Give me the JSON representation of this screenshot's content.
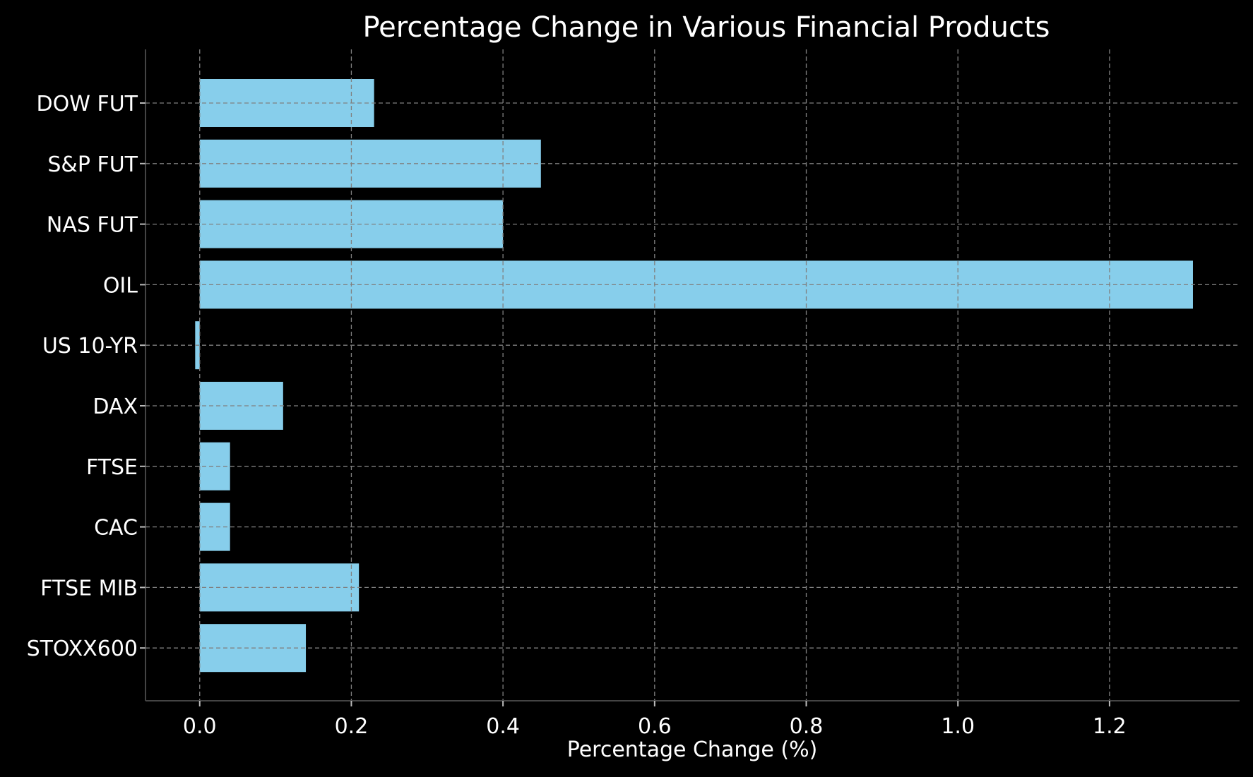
{
  "chart_data": {
    "type": "bar",
    "orientation": "horizontal",
    "title": "Percentage Change in Various Financial Products",
    "xlabel": "Percentage Change (%)",
    "ylabel": "",
    "categories": [
      "DOW FUT",
      "S&P FUT",
      "NAS FUT",
      "OIL",
      "US 10-YR",
      "DAX",
      "FTSE",
      "CAC",
      "FTSE MIB",
      "STOXX600"
    ],
    "values": [
      0.23,
      0.45,
      0.4,
      1.31,
      -0.006,
      0.11,
      0.04,
      0.04,
      0.21,
      0.14
    ],
    "xlim": [
      -0.0715,
      1.3715
    ],
    "xticks": [
      0.0,
      0.2,
      0.4,
      0.6,
      0.8,
      1.0,
      1.2
    ],
    "xtick_labels": [
      "0.0",
      "0.2",
      "0.4",
      "0.6",
      "0.8",
      "1.0",
      "1.2"
    ],
    "grid": true,
    "legend": "none",
    "colors": {
      "bar": "#87ceeb",
      "background": "#000000",
      "text": "#ffffff",
      "grid": "#808080"
    }
  }
}
